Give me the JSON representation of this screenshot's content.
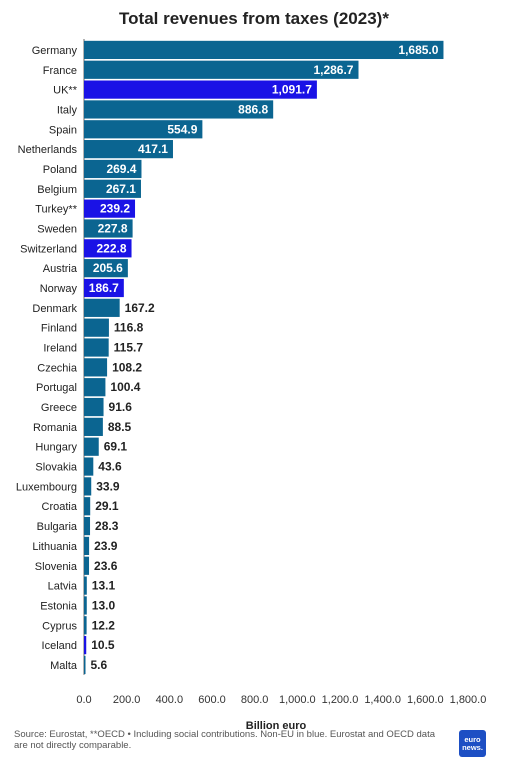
{
  "chart_data": {
    "type": "bar",
    "orientation": "horizontal",
    "title": "Total revenues from taxes (2023)*",
    "xlabel": "Billion euro",
    "ylabel": "",
    "xlim": [
      0,
      1800
    ],
    "ticks": [
      "0.0",
      "200.0",
      "400.0",
      "600.0",
      "800.0",
      "1,000.0",
      "1,200.0",
      "1,400.0",
      "1,600.0",
      "1,800.0"
    ],
    "grid": false,
    "colors": {
      "eu": "#0b6591",
      "non_eu": "#1a12e6"
    },
    "categories": [
      "Germany",
      "France",
      "UK**",
      "Italy",
      "Spain",
      "Netherlands",
      "Poland",
      "Belgium",
      "Turkey**",
      "Sweden",
      "Switzerland",
      "Austria",
      "Norway",
      "Denmark",
      "Finland",
      "Ireland",
      "Czechia",
      "Portugal",
      "Greece",
      "Romania",
      "Hungary",
      "Slovakia",
      "Luxembourg",
      "Croatia",
      "Bulgaria",
      "Lithuania",
      "Slovenia",
      "Latvia",
      "Estonia",
      "Cyprus",
      "Iceland",
      "Malta"
    ],
    "values": [
      1685.0,
      1286.7,
      1091.7,
      886.8,
      554.9,
      417.1,
      269.4,
      267.1,
      239.2,
      227.8,
      222.8,
      205.6,
      186.7,
      167.2,
      116.8,
      115.7,
      108.2,
      100.4,
      91.6,
      88.5,
      69.1,
      43.6,
      33.9,
      29.1,
      28.3,
      23.9,
      23.6,
      13.1,
      13.0,
      12.2,
      10.5,
      5.6
    ],
    "labels": [
      "1,685.0",
      "1,286.7",
      "1,091.7",
      "886.8",
      "554.9",
      "417.1",
      "269.4",
      "267.1",
      "239.2",
      "227.8",
      "222.8",
      "205.6",
      "186.7",
      "167.2",
      "116.8",
      "115.7",
      "108.2",
      "100.4",
      "91.6",
      "88.5",
      "69.1",
      "43.6",
      "33.9",
      "29.1",
      "28.3",
      "23.9",
      "23.6",
      "13.1",
      "13.0",
      "12.2",
      "10.5",
      "5.6"
    ],
    "non_eu": [
      false,
      false,
      true,
      false,
      false,
      false,
      false,
      false,
      true,
      false,
      true,
      false,
      true,
      false,
      false,
      false,
      false,
      false,
      false,
      false,
      false,
      false,
      false,
      false,
      false,
      false,
      false,
      false,
      false,
      false,
      true,
      false
    ]
  },
  "footer": {
    "source": "Source: Eurostat, **OECD • Including social contributions. Non-EU in blue. Eurostat and OECD data are not directly comparable.",
    "logo_line1": "euro",
    "logo_line2": "news."
  }
}
